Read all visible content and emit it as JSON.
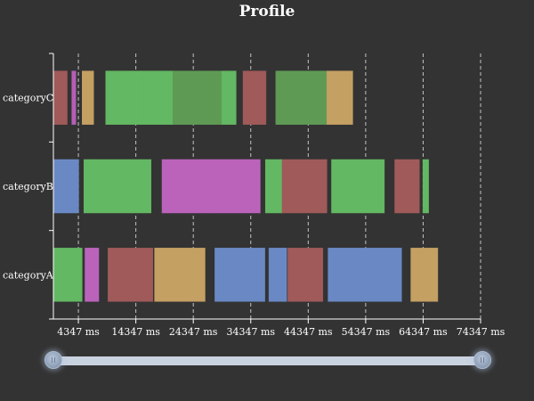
{
  "chart_data": {
    "type": "timeline",
    "title": "Profile",
    "categories": [
      "categoryC",
      "categoryB",
      "categoryA"
    ],
    "x_unit": "ms",
    "xlim": [
      0,
      74347
    ],
    "x_ticks": [
      4347,
      14347,
      24347,
      34347,
      44347,
      54347,
      64347,
      74347
    ],
    "x_tick_labels": [
      "4347 ms",
      "14347 ms",
      "24347 ms",
      "34347 ms",
      "44347 ms",
      "54347 ms",
      "64347 ms",
      "74347 ms"
    ],
    "grid": true,
    "bars": [
      {
        "category": "categoryC",
        "start": 0,
        "end": 2400,
        "color": "#a05a5a"
      },
      {
        "category": "categoryC",
        "start": 3200,
        "end": 3900,
        "color": "#b45fb4"
      },
      {
        "category": "categoryC",
        "start": 5000,
        "end": 7000,
        "color": "#c4a063"
      },
      {
        "category": "categoryC",
        "start": 9100,
        "end": 15400,
        "color": "#63b863"
      },
      {
        "category": "categoryC",
        "start": 15400,
        "end": 20800,
        "color": "#63b863"
      },
      {
        "category": "categoryC",
        "start": 20800,
        "end": 29300,
        "color": "#5f9a55"
      },
      {
        "category": "categoryC",
        "start": 29300,
        "end": 31800,
        "color": "#63b863"
      },
      {
        "category": "categoryC",
        "start": 33000,
        "end": 37000,
        "color": "#a05a5a"
      },
      {
        "category": "categoryC",
        "start": 38700,
        "end": 47600,
        "color": "#5f9a55"
      },
      {
        "category": "categoryC",
        "start": 47600,
        "end": 52100,
        "color": "#c4a063"
      },
      {
        "category": "categoryB",
        "start": 0,
        "end": 4400,
        "color": "#6a89c4"
      },
      {
        "category": "categoryB",
        "start": 5300,
        "end": 7200,
        "color": "#63b863"
      },
      {
        "category": "categoryB",
        "start": 7200,
        "end": 17000,
        "color": "#63b863"
      },
      {
        "category": "categoryB",
        "start": 18900,
        "end": 27900,
        "color": "#bb63bb"
      },
      {
        "category": "categoryB",
        "start": 27900,
        "end": 36000,
        "color": "#bb63bb"
      },
      {
        "category": "categoryB",
        "start": 36900,
        "end": 39800,
        "color": "#63b863"
      },
      {
        "category": "categoryB",
        "start": 39800,
        "end": 47600,
        "color": "#a05a5a"
      },
      {
        "category": "categoryB",
        "start": 48400,
        "end": 57600,
        "color": "#63b863"
      },
      {
        "category": "categoryB",
        "start": 59400,
        "end": 63700,
        "color": "#a05a5a"
      },
      {
        "category": "categoryB",
        "start": 64300,
        "end": 65300,
        "color": "#63b863"
      },
      {
        "category": "categoryA",
        "start": 0,
        "end": 5000,
        "color": "#63b863"
      },
      {
        "category": "categoryA",
        "start": 5500,
        "end": 7900,
        "color": "#bb63bb"
      },
      {
        "category": "categoryA",
        "start": 9500,
        "end": 17300,
        "color": "#a05a5a"
      },
      {
        "category": "categoryA",
        "start": 17600,
        "end": 26400,
        "color": "#c4a063"
      },
      {
        "category": "categoryA",
        "start": 28100,
        "end": 36800,
        "color": "#6a89c4"
      },
      {
        "category": "categoryA",
        "start": 37500,
        "end": 40600,
        "color": "#6a89c4"
      },
      {
        "category": "categoryA",
        "start": 40800,
        "end": 46900,
        "color": "#a05a5a"
      },
      {
        "category": "categoryA",
        "start": 47800,
        "end": 60600,
        "color": "#6a89c4"
      },
      {
        "category": "categoryA",
        "start": 62200,
        "end": 66900,
        "color": "#c4a063"
      }
    ]
  },
  "slider": {
    "range_start": 0,
    "range_end": 1
  }
}
